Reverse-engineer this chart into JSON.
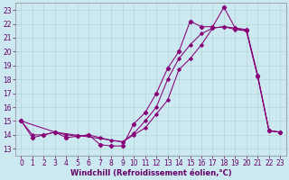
{
  "xlabel": "Windchill (Refroidissement éolien,°C)",
  "background_color": "#cce8f0",
  "line_color": "#880077",
  "grid_color": "#aacccc",
  "xlim": [
    -0.5,
    23.5
  ],
  "ylim": [
    12.5,
    23.5
  ],
  "yticks": [
    13,
    14,
    15,
    16,
    17,
    18,
    19,
    20,
    21,
    22,
    23
  ],
  "xticks": [
    0,
    1,
    2,
    3,
    4,
    5,
    6,
    7,
    8,
    9,
    10,
    11,
    12,
    13,
    14,
    15,
    16,
    17,
    18,
    19,
    20,
    21,
    22,
    23
  ],
  "series1_x": [
    0,
    1,
    2,
    3,
    4,
    5,
    6,
    7,
    8,
    9,
    10,
    11,
    12,
    13,
    14,
    15,
    16,
    17,
    18,
    19,
    20,
    21,
    22,
    23
  ],
  "series1_y": [
    15.0,
    13.8,
    14.0,
    14.2,
    13.8,
    13.9,
    14.0,
    13.3,
    13.2,
    13.2,
    14.8,
    15.6,
    17.0,
    18.8,
    20.0,
    22.2,
    21.8,
    21.8,
    23.2,
    21.7,
    21.6,
    18.3,
    14.3,
    14.2
  ],
  "series2_x": [
    0,
    1,
    2,
    3,
    4,
    5,
    6,
    7,
    8,
    9,
    10,
    11,
    12,
    13,
    14,
    15,
    16,
    17,
    18,
    19,
    20,
    21,
    22,
    23
  ],
  "series2_y": [
    15.0,
    14.0,
    14.0,
    14.2,
    14.0,
    13.9,
    14.0,
    13.8,
    13.6,
    13.5,
    14.0,
    14.5,
    15.5,
    16.5,
    18.7,
    19.5,
    20.5,
    21.7,
    21.8,
    21.6,
    21.5,
    18.2,
    14.3,
    14.2
  ],
  "series3_x": [
    0,
    3,
    9,
    10,
    11,
    12,
    13,
    14,
    15,
    16,
    17,
    18,
    19,
    20,
    21,
    22,
    23
  ],
  "series3_y": [
    15.0,
    14.2,
    13.5,
    14.1,
    15.0,
    16.0,
    18.0,
    19.5,
    20.5,
    21.3,
    21.7,
    21.8,
    21.7,
    21.5,
    18.2,
    14.3,
    14.2
  ],
  "tick_fontsize": 5.5,
  "xlabel_fontsize": 6.0,
  "tick_color": "#660066",
  "spine_color": "#888888"
}
